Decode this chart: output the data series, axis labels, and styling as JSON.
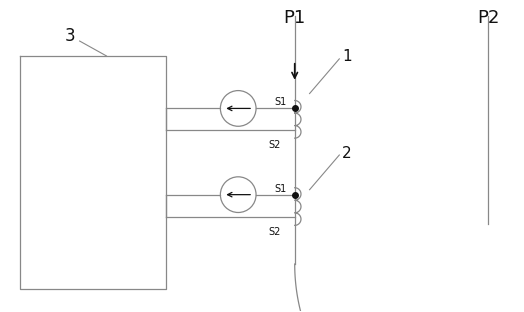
{
  "bg_color": "#ffffff",
  "line_color": "#888888",
  "label_color": "#111111",
  "fig_w": 5.24,
  "fig_h": 3.12,
  "p1_label": "P1",
  "p2_label": "P2",
  "box_label": "3",
  "ct1_label": "1",
  "ct2_label": "2",
  "s1_label": "S1",
  "s2_label": "S2"
}
